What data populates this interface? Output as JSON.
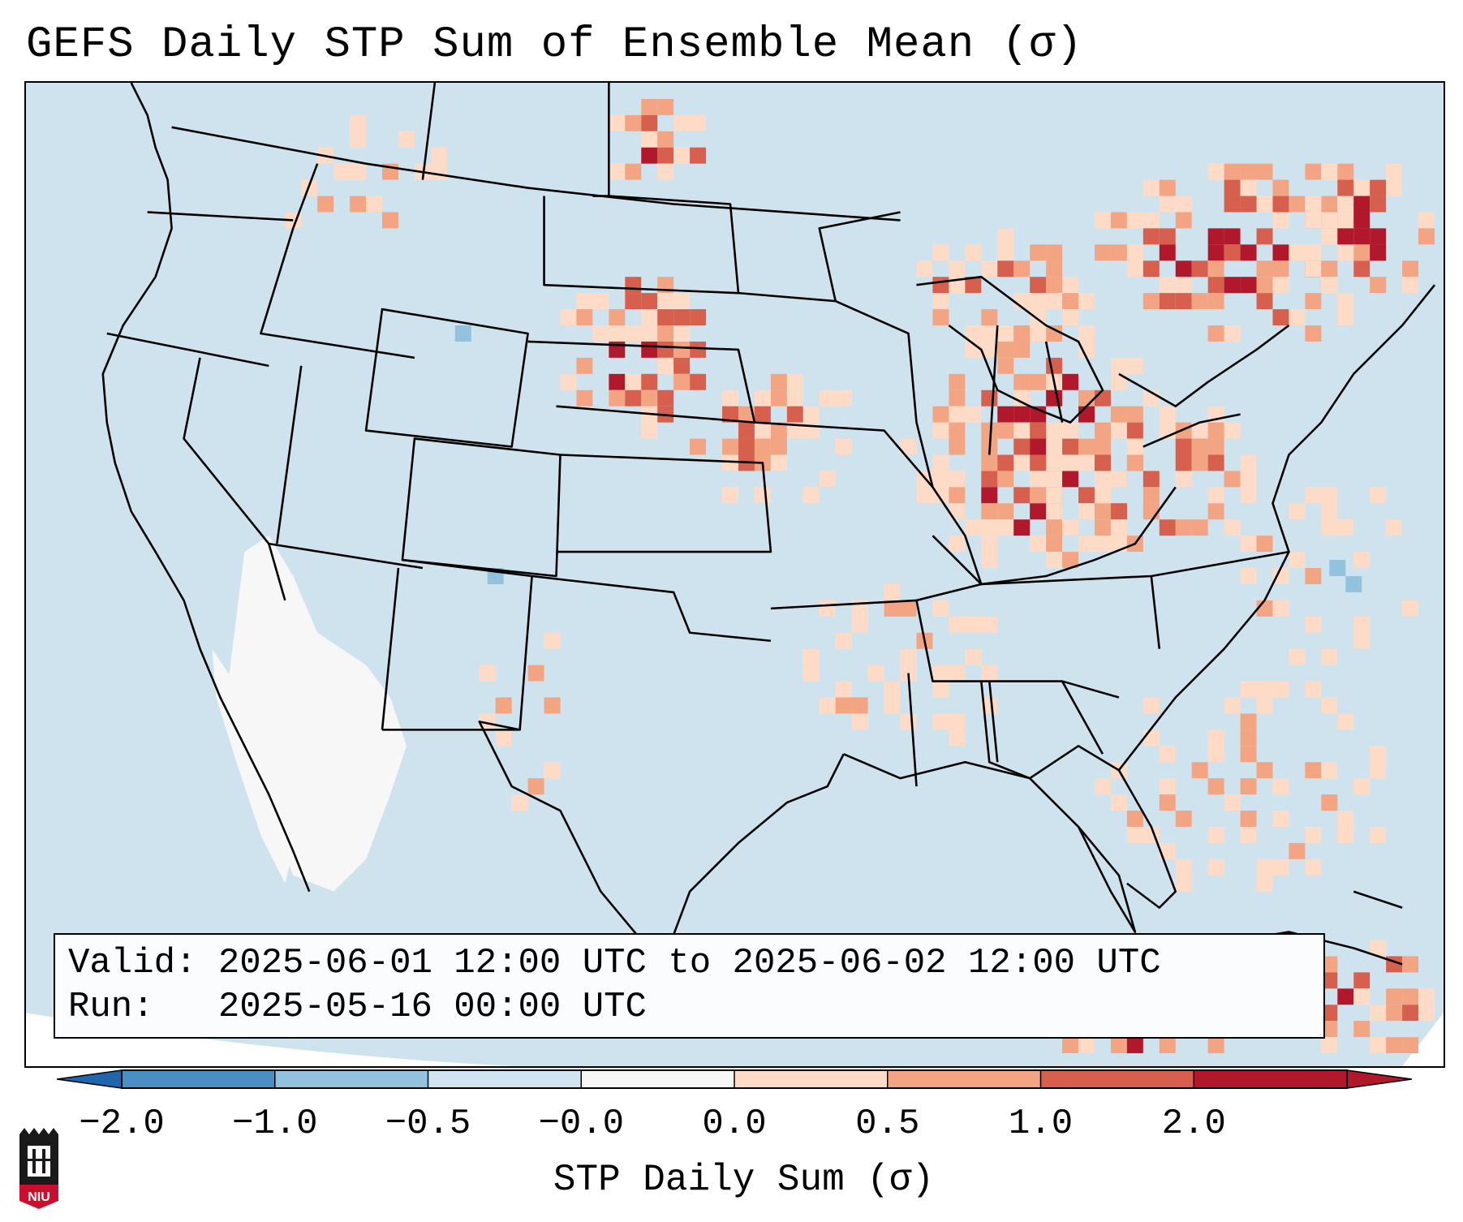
{
  "title": "GEFS Daily STP Sum of Ensemble Mean (σ)",
  "info": {
    "valid_label": "Valid:",
    "valid_value": "2025-06-01 12:00 UTC to 2025-06-02 12:00 UTC",
    "run_label": "Run:",
    "run_value": "2025-05-16 00:00 UTC"
  },
  "colorbar": {
    "label": "STP Daily Sum (σ)",
    "ticks": [
      "−2.0",
      "−1.0",
      "−0.5",
      "−0.0",
      "0.0",
      "0.5",
      "1.0",
      "2.0"
    ],
    "colors": [
      "#4a8fc4",
      "#92c2de",
      "#d1e5f0",
      "#f7f7f7",
      "#fddbc7",
      "#f3a482",
      "#d6604d",
      "#b2182b"
    ]
  },
  "logo": {
    "text": "NIU"
  }
}
